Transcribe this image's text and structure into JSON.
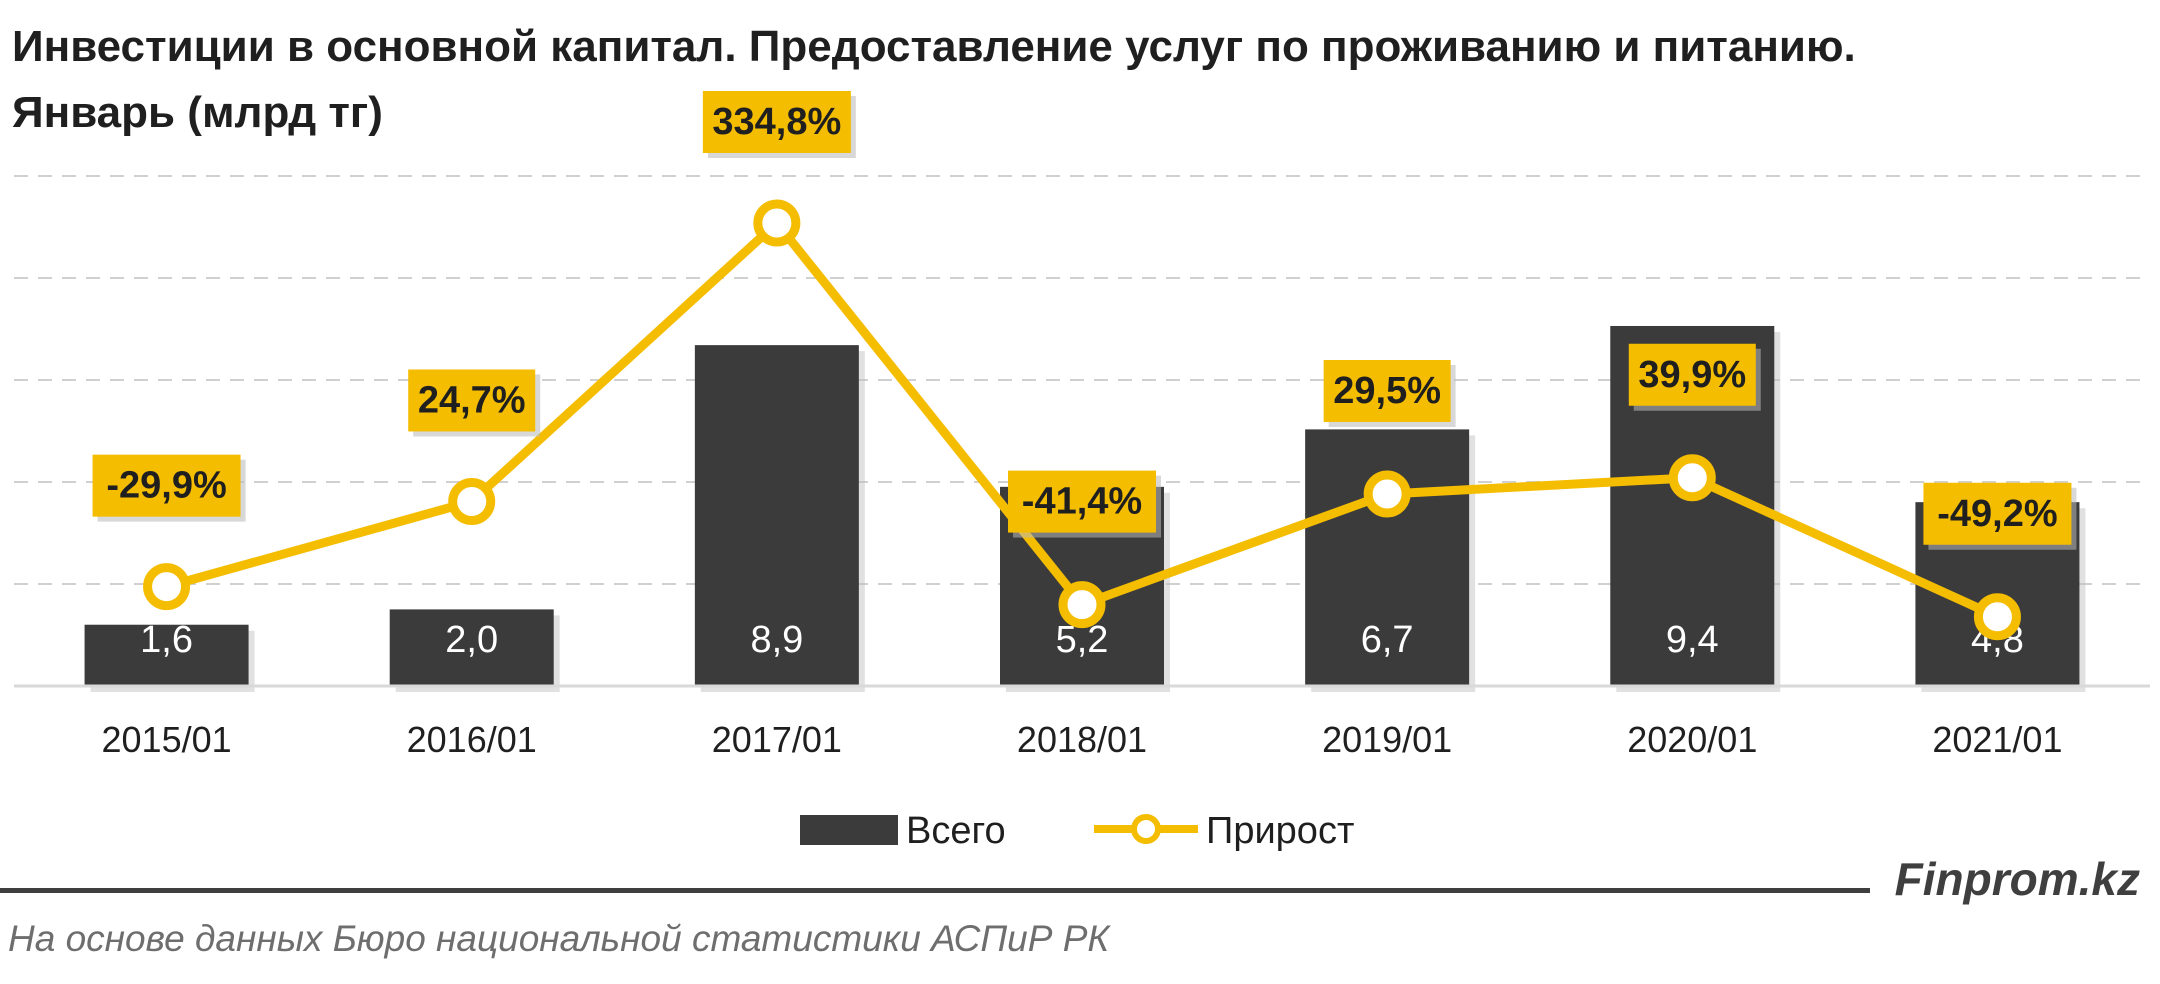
{
  "title_line1": "Инвестиции в основной капитал. Предоставление услуг по проживанию и питанию.",
  "title_line2": "Январь (млрд тг)",
  "brand": "Finprom.kz",
  "source": "На основе данных Бюро национальной статистики АСПиР РК",
  "colors": {
    "bar": "#3b3b3b",
    "line": "#f5bd00",
    "label_bg": "#f5bd00",
    "bar_label": "#ffffff",
    "grid": "#d0d0d0",
    "text": "#1f1f1f"
  },
  "chart_data": {
    "type": "bar",
    "categories": [
      "2015/01",
      "2016/01",
      "2017/01",
      "2018/01",
      "2019/01",
      "2020/01",
      "2021/01"
    ],
    "series": [
      {
        "name": "Всего",
        "type": "bar",
        "values": [
          1.6,
          2.0,
          8.9,
          5.2,
          6.7,
          9.4,
          4.8
        ],
        "labels": [
          "1,6",
          "2,0",
          "8,9",
          "5,2",
          "6,7",
          "9,4",
          "4,8"
        ]
      },
      {
        "name": "Прирост",
        "type": "line",
        "values": [
          -29.9,
          24.7,
          334.8,
          -41.4,
          29.5,
          39.9,
          -49.2
        ],
        "labels": [
          "-29,9%",
          "24,7%",
          "334,8%",
          "-41,4%",
          "29,5%",
          "39,9%",
          "-49,2%"
        ]
      }
    ],
    "legend": "bottom",
    "grid": true
  }
}
